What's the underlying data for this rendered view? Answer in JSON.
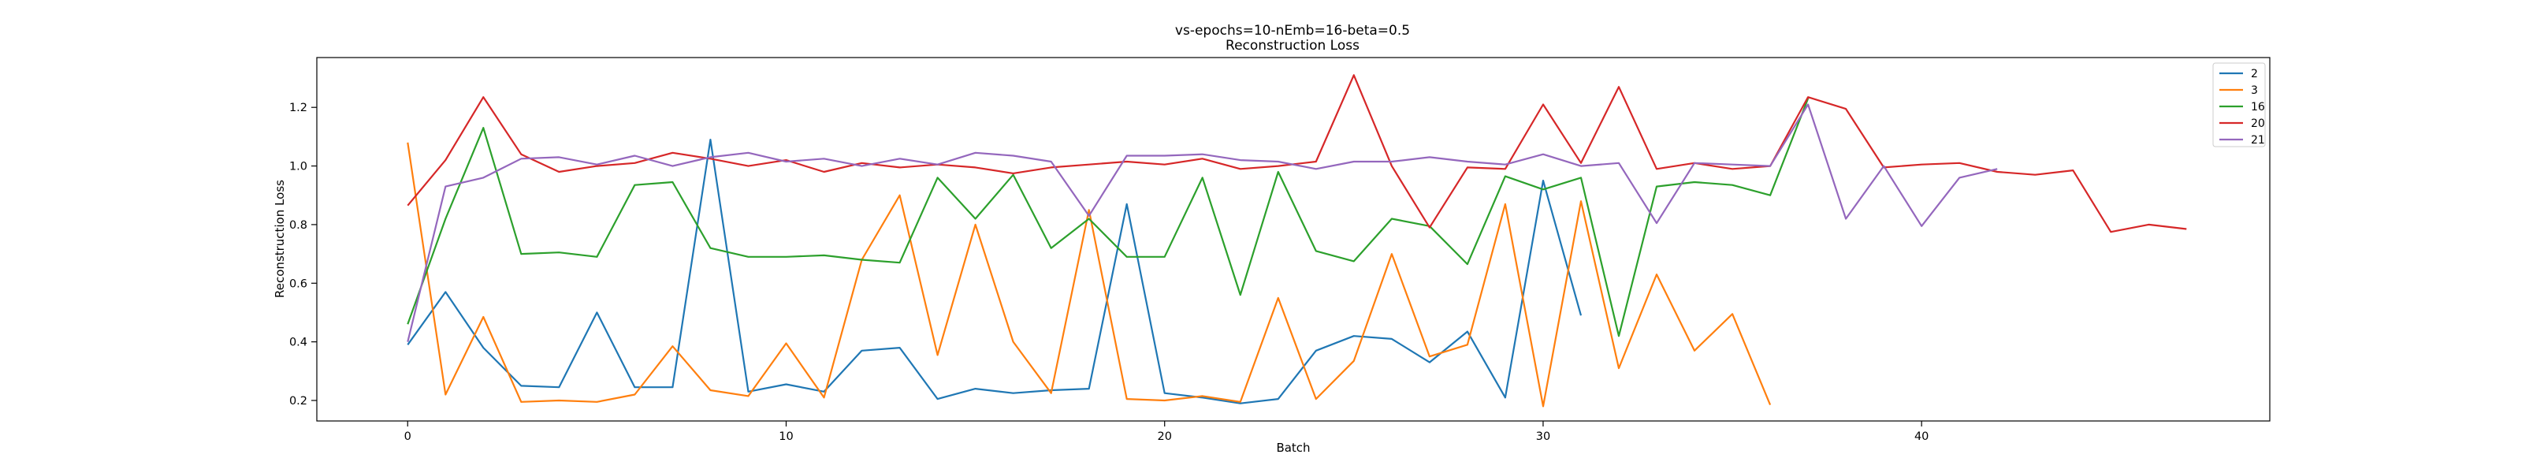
{
  "chart_data": {
    "type": "line",
    "title": "vs-epochs=10-nEmb=16-beta=0.5",
    "subtitle": "Reconstruction Loss",
    "xlabel": "Batch",
    "ylabel": "Reconstruction Loss",
    "xlim": [
      -2.4,
      49.2
    ],
    "ylim": [
      0.13,
      1.37
    ],
    "xticks": [
      0,
      10,
      20,
      30,
      40
    ],
    "yticks": [
      0.2,
      0.4,
      0.6,
      0.8,
      1.0,
      1.2
    ],
    "grid": false,
    "legend_position": "top-right",
    "series": [
      {
        "name": "2",
        "color": "#1f77b4",
        "values": [
          0.39,
          0.57,
          0.38,
          0.25,
          0.245,
          0.5,
          0.245,
          0.245,
          1.09,
          0.23,
          0.255,
          0.23,
          0.37,
          0.38,
          0.205,
          0.24,
          0.225,
          0.235,
          0.24,
          0.87,
          0.225,
          0.21,
          0.19,
          0.205,
          0.37,
          0.42,
          0.41,
          0.33,
          0.435,
          0.21,
          0.95,
          0.49
        ]
      },
      {
        "name": "3",
        "color": "#ff7f0e",
        "values": [
          1.08,
          0.22,
          0.485,
          0.195,
          0.2,
          0.195,
          0.22,
          0.385,
          0.235,
          0.215,
          0.395,
          0.21,
          0.68,
          0.9,
          0.355,
          0.8,
          0.4,
          0.225,
          0.85,
          0.205,
          0.2,
          0.215,
          0.195,
          0.55,
          0.205,
          0.335,
          0.7,
          0.35,
          0.39,
          0.87,
          0.18,
          0.88,
          0.31,
          0.63,
          0.37,
          0.495,
          0.185
        ]
      },
      {
        "name": "16",
        "color": "#2ca02c",
        "values": [
          0.46,
          0.82,
          1.13,
          0.7,
          0.705,
          0.69,
          0.935,
          0.945,
          0.72,
          0.69,
          0.69,
          0.695,
          0.68,
          0.67,
          0.96,
          0.82,
          0.97,
          0.72,
          0.82,
          0.69,
          0.69,
          0.96,
          0.56,
          0.98,
          0.71,
          0.675,
          0.82,
          0.795,
          0.665,
          0.965,
          0.92,
          0.96,
          0.42,
          0.93,
          0.945,
          0.935,
          0.9,
          1.23
        ]
      },
      {
        "name": "20",
        "color": "#d62728",
        "values": [
          0.865,
          1.02,
          1.235,
          1.04,
          0.98,
          1.0,
          1.01,
          1.045,
          1.025,
          1.0,
          1.02,
          0.98,
          1.01,
          0.995,
          1.005,
          0.995,
          0.975,
          0.995,
          1.005,
          1.015,
          1.005,
          1.025,
          0.99,
          1.0,
          1.015,
          1.31,
          1.0,
          0.79,
          0.995,
          0.99,
          1.21,
          1.01,
          1.27,
          0.99,
          1.01,
          0.99,
          1.0,
          1.235,
          1.195,
          0.995,
          1.005,
          1.01,
          0.98,
          0.97,
          0.985,
          0.775,
          0.8,
          0.785
        ]
      },
      {
        "name": "21",
        "color": "#9467bd",
        "values": [
          0.4,
          0.93,
          0.96,
          1.025,
          1.03,
          1.005,
          1.035,
          1.0,
          1.03,
          1.045,
          1.015,
          1.025,
          1.0,
          1.025,
          1.005,
          1.045,
          1.035,
          1.015,
          0.83,
          1.035,
          1.035,
          1.04,
          1.02,
          1.015,
          0.99,
          1.015,
          1.015,
          1.03,
          1.015,
          1.005,
          1.04,
          1.0,
          1.01,
          0.805,
          1.01,
          1.005,
          1.0,
          1.21,
          0.82,
          1.0,
          0.795,
          0.96,
          0.99
        ]
      }
    ]
  }
}
